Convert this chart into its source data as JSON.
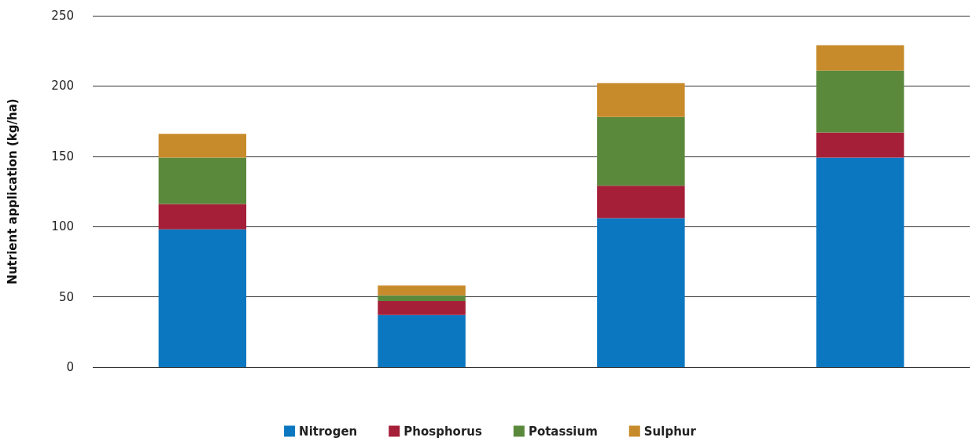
{
  "chart_data": {
    "type": "bar",
    "stacked": true,
    "ylabel": "Nutrient application (kg/ha)",
    "categories": [
      null,
      null,
      null,
      null
    ],
    "series": [
      {
        "name": "Nitrogen",
        "color": "#0b77c0",
        "values": [
          98,
          37,
          106,
          149
        ]
      },
      {
        "name": "Phosphorus",
        "color": "#a51f38",
        "values": [
          18,
          10,
          23,
          18
        ]
      },
      {
        "name": "Potassium",
        "color": "#5b893c",
        "values": [
          33,
          4,
          49,
          44
        ]
      },
      {
        "name": "Sulphur",
        "color": "#c88b2b",
        "values": [
          17,
          7,
          24,
          18
        ]
      }
    ],
    "ylim": [
      0,
      250
    ],
    "yticks": [
      0,
      50,
      100,
      150,
      200,
      250
    ],
    "grid": "y",
    "legend": "bottom"
  }
}
